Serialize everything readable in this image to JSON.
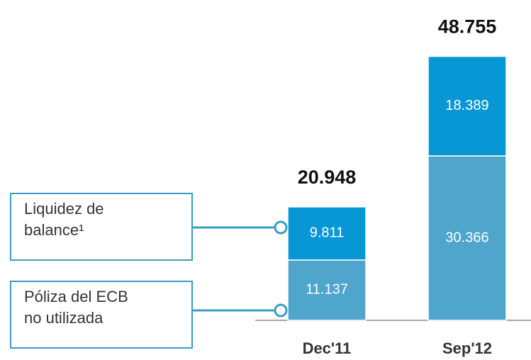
{
  "chart_data": {
    "type": "stacked_bar",
    "categories": [
      "Dec'11",
      "Sep'12"
    ],
    "series": [
      {
        "name": "Póliza del ECB no utilizada",
        "color": "#4fa5cb",
        "values": [
          11.137,
          30.366
        ]
      },
      {
        "name": "Liquidez de balance¹",
        "color": "#0897d5",
        "values": [
          9.811,
          18.389
        ]
      }
    ],
    "totals": [
      20.948,
      48.755
    ]
  }
}
